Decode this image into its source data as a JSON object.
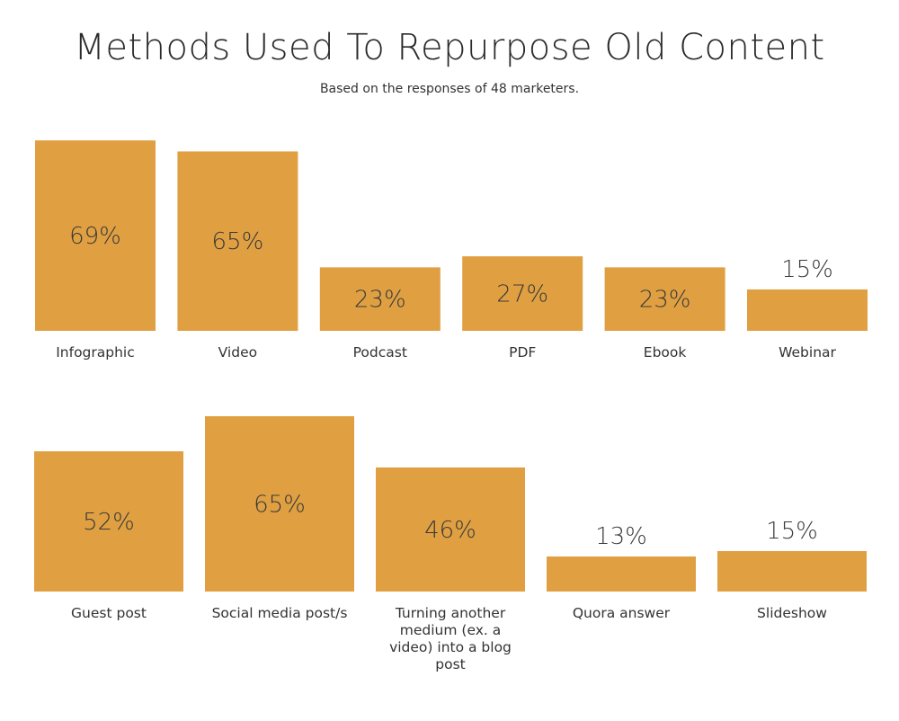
{
  "header": {
    "title": "Methods Used To Repurpose Old Content",
    "subtitle": "Based on the responses of 48 marketers."
  },
  "colors": {
    "bar": "#e0a042",
    "text": "#333333"
  },
  "chart_data": [
    {
      "type": "bar",
      "title": "",
      "xlabel": "",
      "ylabel": "",
      "ylim": [
        0,
        100
      ],
      "grid": false,
      "categories": [
        "Infographic",
        "Video",
        "Podcast",
        "PDF",
        "Ebook",
        "Webinar"
      ],
      "values": [
        69,
        65,
        23,
        27,
        23,
        15
      ],
      "data_labels": [
        "69%",
        "65%",
        "23%",
        "27%",
        "23%",
        "15%"
      ]
    },
    {
      "type": "bar",
      "title": "",
      "xlabel": "",
      "ylabel": "",
      "ylim": [
        0,
        100
      ],
      "grid": false,
      "categories": [
        "Guest post",
        "Social media post/s",
        "Turning another medium (ex. a video) into a blog post",
        "Quora answer",
        "Slideshow"
      ],
      "category_lines": [
        [
          "Guest post"
        ],
        [
          "Social media post/s"
        ],
        [
          "Turning another",
          "medium (ex. a",
          "video) into a blog",
          "post"
        ],
        [
          "Quora answer"
        ],
        [
          "Slideshow"
        ]
      ],
      "values": [
        52,
        65,
        46,
        13,
        15
      ],
      "data_labels": [
        "52%",
        "65%",
        "46%",
        "13%",
        "15%"
      ]
    }
  ]
}
